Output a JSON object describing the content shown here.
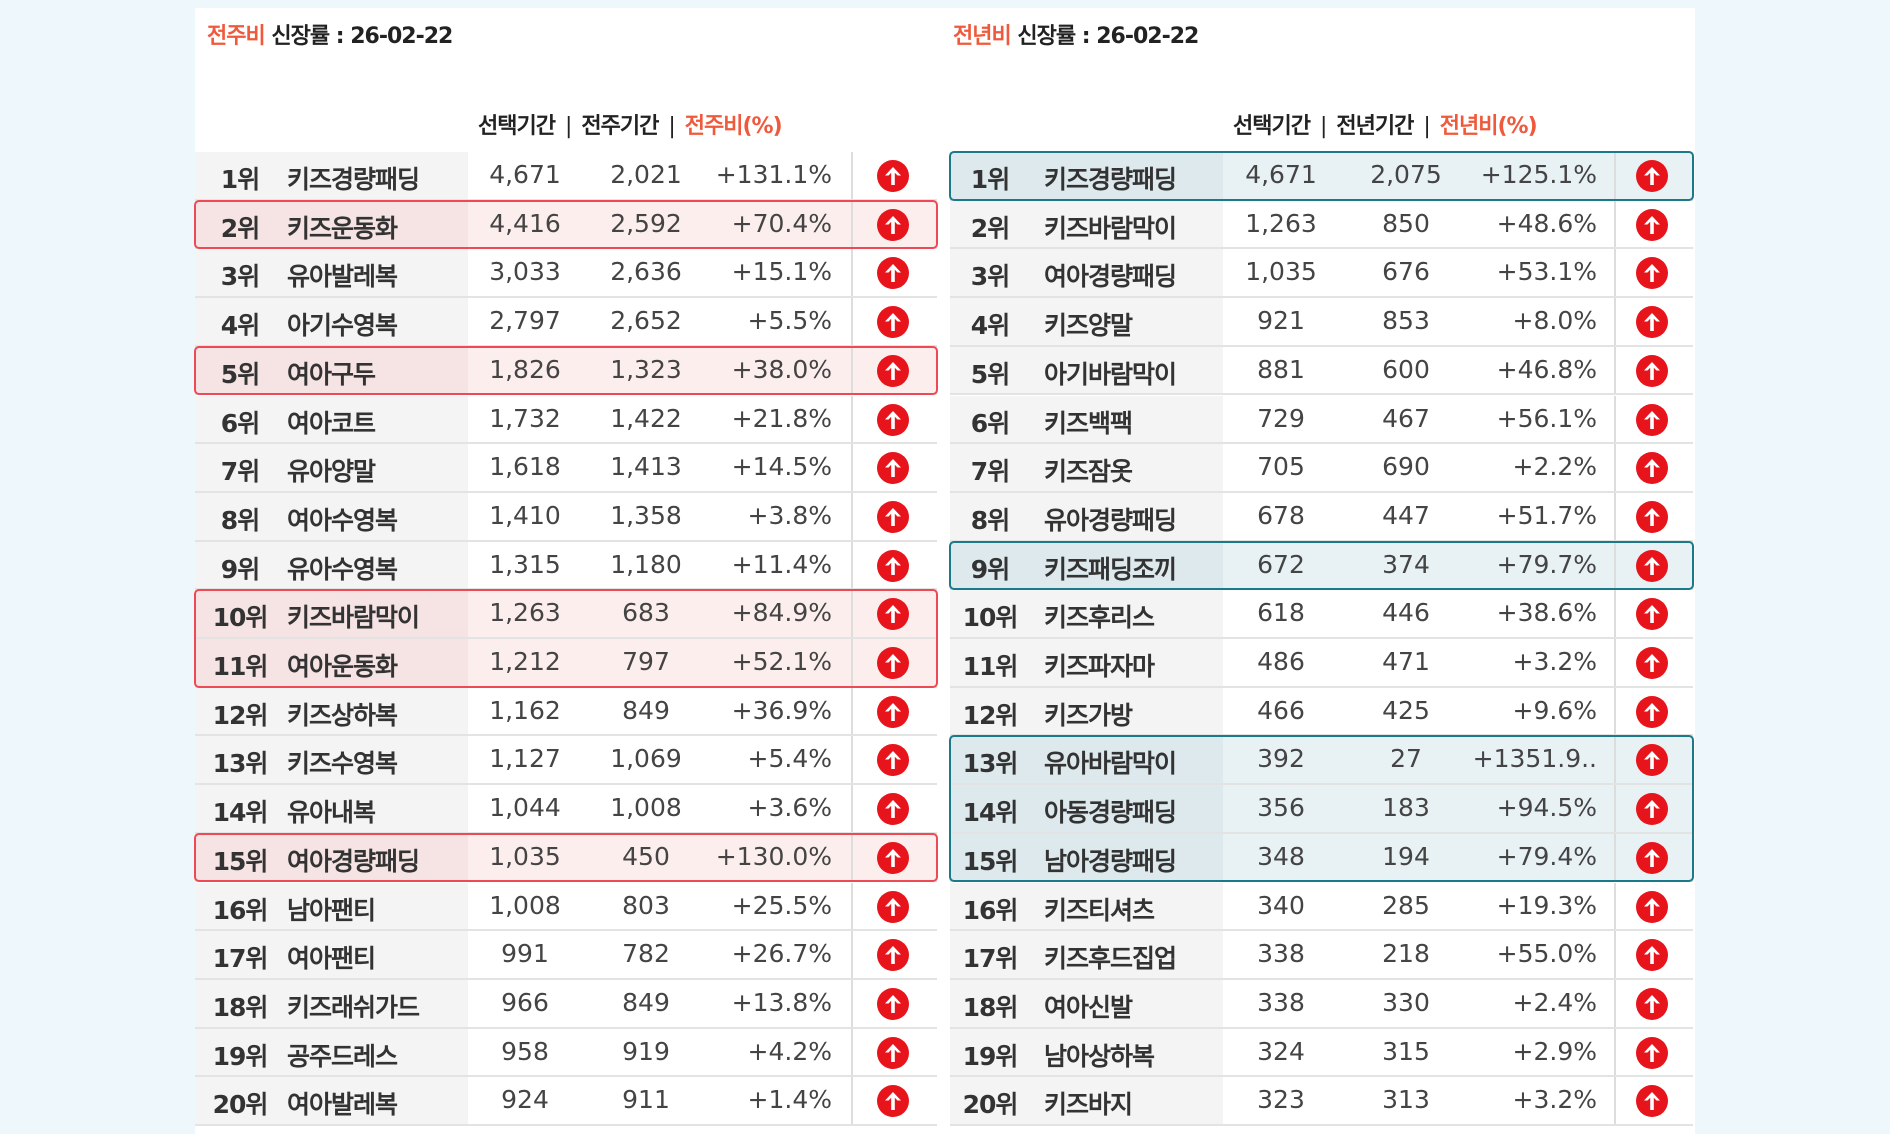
{
  "weekly": {
    "title_accent": "전주비",
    "title_rest": " 신장률  : 26-02-22",
    "col_selected": "선택기간",
    "col_prev": "전주기간",
    "col_ratio": "전주비(%)",
    "sep": "|",
    "highlight_rows": [
      [
        2,
        2
      ],
      [
        5,
        5
      ],
      [
        10,
        11
      ],
      [
        15,
        15
      ]
    ],
    "rows": [
      {
        "rank": "1위",
        "name": "키즈경량패딩",
        "selected": "4,671",
        "prev": "2,021",
        "ratio": "+131.1%",
        "trend": "up"
      },
      {
        "rank": "2위",
        "name": "키즈운동화",
        "selected": "4,416",
        "prev": "2,592",
        "ratio": "+70.4%",
        "trend": "up"
      },
      {
        "rank": "3위",
        "name": "유아발레복",
        "selected": "3,033",
        "prev": "2,636",
        "ratio": "+15.1%",
        "trend": "up"
      },
      {
        "rank": "4위",
        "name": "아기수영복",
        "selected": "2,797",
        "prev": "2,652",
        "ratio": "+5.5%",
        "trend": "up"
      },
      {
        "rank": "5위",
        "name": "여아구두",
        "selected": "1,826",
        "prev": "1,323",
        "ratio": "+38.0%",
        "trend": "up"
      },
      {
        "rank": "6위",
        "name": "여아코트",
        "selected": "1,732",
        "prev": "1,422",
        "ratio": "+21.8%",
        "trend": "up"
      },
      {
        "rank": "7위",
        "name": "유아양말",
        "selected": "1,618",
        "prev": "1,413",
        "ratio": "+14.5%",
        "trend": "up"
      },
      {
        "rank": "8위",
        "name": "여아수영복",
        "selected": "1,410",
        "prev": "1,358",
        "ratio": "+3.8%",
        "trend": "up"
      },
      {
        "rank": "9위",
        "name": "유아수영복",
        "selected": "1,315",
        "prev": "1,180",
        "ratio": "+11.4%",
        "trend": "up"
      },
      {
        "rank": "10위",
        "name": "키즈바람막이",
        "selected": "1,263",
        "prev": "683",
        "ratio": "+84.9%",
        "trend": "up"
      },
      {
        "rank": "11위",
        "name": "여아운동화",
        "selected": "1,212",
        "prev": "797",
        "ratio": "+52.1%",
        "trend": "up"
      },
      {
        "rank": "12위",
        "name": "키즈상하복",
        "selected": "1,162",
        "prev": "849",
        "ratio": "+36.9%",
        "trend": "up"
      },
      {
        "rank": "13위",
        "name": "키즈수영복",
        "selected": "1,127",
        "prev": "1,069",
        "ratio": "+5.4%",
        "trend": "up"
      },
      {
        "rank": "14위",
        "name": "유아내복",
        "selected": "1,044",
        "prev": "1,008",
        "ratio": "+3.6%",
        "trend": "up"
      },
      {
        "rank": "15위",
        "name": "여아경량패딩",
        "selected": "1,035",
        "prev": "450",
        "ratio": "+130.0%",
        "trend": "up"
      },
      {
        "rank": "16위",
        "name": "남아팬티",
        "selected": "1,008",
        "prev": "803",
        "ratio": "+25.5%",
        "trend": "up"
      },
      {
        "rank": "17위",
        "name": "여아팬티",
        "selected": "991",
        "prev": "782",
        "ratio": "+26.7%",
        "trend": "up"
      },
      {
        "rank": "18위",
        "name": "키즈래쉬가드",
        "selected": "966",
        "prev": "849",
        "ratio": "+13.8%",
        "trend": "up"
      },
      {
        "rank": "19위",
        "name": "공주드레스",
        "selected": "958",
        "prev": "919",
        "ratio": "+4.2%",
        "trend": "up"
      },
      {
        "rank": "20위",
        "name": "여아발레복",
        "selected": "924",
        "prev": "911",
        "ratio": "+1.4%",
        "trend": "up"
      }
    ]
  },
  "yearly": {
    "title_accent": "전년비",
    "title_rest": " 신장률 : 26-02-22",
    "col_selected": "선택기간",
    "col_prev": "전년기간",
    "col_ratio": "전년비(%)",
    "sep": "|",
    "highlight_rows": [
      [
        1,
        1
      ],
      [
        9,
        9
      ],
      [
        13,
        15
      ]
    ],
    "rows": [
      {
        "rank": "1위",
        "name": "키즈경량패딩",
        "selected": "4,671",
        "prev": "2,075",
        "ratio": "+125.1%",
        "trend": "up"
      },
      {
        "rank": "2위",
        "name": "키즈바람막이",
        "selected": "1,263",
        "prev": "850",
        "ratio": "+48.6%",
        "trend": "up"
      },
      {
        "rank": "3위",
        "name": "여아경량패딩",
        "selected": "1,035",
        "prev": "676",
        "ratio": "+53.1%",
        "trend": "up"
      },
      {
        "rank": "4위",
        "name": "키즈양말",
        "selected": "921",
        "prev": "853",
        "ratio": "+8.0%",
        "trend": "up"
      },
      {
        "rank": "5위",
        "name": "아기바람막이",
        "selected": "881",
        "prev": "600",
        "ratio": "+46.8%",
        "trend": "up"
      },
      {
        "rank": "6위",
        "name": "키즈백팩",
        "selected": "729",
        "prev": "467",
        "ratio": "+56.1%",
        "trend": "up"
      },
      {
        "rank": "7위",
        "name": "키즈잠옷",
        "selected": "705",
        "prev": "690",
        "ratio": "+2.2%",
        "trend": "up"
      },
      {
        "rank": "8위",
        "name": "유아경량패딩",
        "selected": "678",
        "prev": "447",
        "ratio": "+51.7%",
        "trend": "up"
      },
      {
        "rank": "9위",
        "name": "키즈패딩조끼",
        "selected": "672",
        "prev": "374",
        "ratio": "+79.7%",
        "trend": "up"
      },
      {
        "rank": "10위",
        "name": "키즈후리스",
        "selected": "618",
        "prev": "446",
        "ratio": "+38.6%",
        "trend": "up"
      },
      {
        "rank": "11위",
        "name": "키즈파자마",
        "selected": "486",
        "prev": "471",
        "ratio": "+3.2%",
        "trend": "up"
      },
      {
        "rank": "12위",
        "name": "키즈가방",
        "selected": "466",
        "prev": "425",
        "ratio": "+9.6%",
        "trend": "up"
      },
      {
        "rank": "13위",
        "name": "유아바람막이",
        "selected": "392",
        "prev": "27",
        "ratio": "+1351.9..",
        "trend": "up"
      },
      {
        "rank": "14위",
        "name": "아동경량패딩",
        "selected": "356",
        "prev": "183",
        "ratio": "+94.5%",
        "trend": "up"
      },
      {
        "rank": "15위",
        "name": "남아경량패딩",
        "selected": "348",
        "prev": "194",
        "ratio": "+79.4%",
        "trend": "up"
      },
      {
        "rank": "16위",
        "name": "키즈티셔츠",
        "selected": "340",
        "prev": "285",
        "ratio": "+19.3%",
        "trend": "up"
      },
      {
        "rank": "17위",
        "name": "키즈후드집업",
        "selected": "338",
        "prev": "218",
        "ratio": "+55.0%",
        "trend": "up"
      },
      {
        "rank": "18위",
        "name": "여아신발",
        "selected": "338",
        "prev": "330",
        "ratio": "+2.4%",
        "trend": "up"
      },
      {
        "rank": "19위",
        "name": "남아상하복",
        "selected": "324",
        "prev": "315",
        "ratio": "+2.9%",
        "trend": "up"
      },
      {
        "rank": "20위",
        "name": "키즈바지",
        "selected": "323",
        "prev": "313",
        "ratio": "+3.2%",
        "trend": "up"
      }
    ]
  },
  "colors": {
    "accent": "#f05a3c",
    "arrow": "#e8141c",
    "highlight_red": "#ee4a55",
    "highlight_teal": "#1b7a8a"
  }
}
